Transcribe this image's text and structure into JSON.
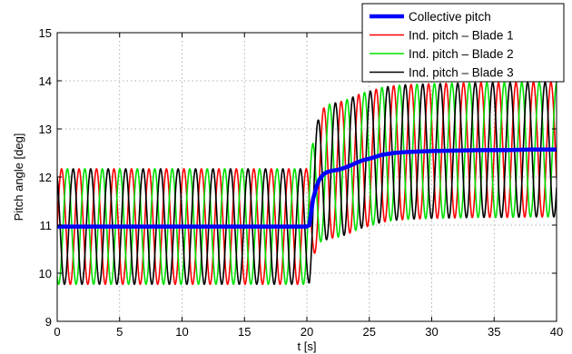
{
  "chart_data": {
    "type": "line",
    "title": "",
    "xlabel": "t [s]",
    "ylabel": "Pitch angle [deg]",
    "xlim": [
      0,
      40
    ],
    "ylim": [
      9,
      15
    ],
    "x_ticks": [
      0,
      5,
      10,
      15,
      20,
      25,
      30,
      35,
      40
    ],
    "y_ticks": [
      9,
      10,
      11,
      12,
      13,
      14,
      15
    ],
    "grid": true,
    "legend_position": "top-right",
    "series": [
      {
        "name": "Collective pitch",
        "color": "#0000ff",
        "x": [
          0,
          5,
          10,
          15,
          20,
          20.2,
          20.5,
          20.8,
          21.0,
          21.3,
          21.6,
          22.0,
          22.5,
          23.0,
          23.5,
          24.0,
          24.5,
          25.0,
          25.5,
          26.0,
          26.5,
          27.0,
          28.0,
          29.0,
          30.0,
          32.0,
          34.0,
          36.0,
          38.0,
          40.0
        ],
        "values": [
          10.97,
          10.97,
          10.97,
          10.97,
          10.97,
          11.0,
          11.55,
          11.82,
          11.95,
          12.05,
          12.1,
          12.13,
          12.15,
          12.19,
          12.24,
          12.3,
          12.35,
          12.38,
          12.42,
          12.46,
          12.48,
          12.5,
          12.52,
          12.53,
          12.54,
          12.55,
          12.56,
          12.56,
          12.57,
          12.57
        ]
      },
      {
        "name": "Ind. pitch – Blade 1",
        "color": "#ff0000",
        "center": "Collective pitch",
        "amplitude_before": 1.2,
        "amplitude_after": 1.4,
        "period_s": 1.4,
        "phase_deg": 0
      },
      {
        "name": "Ind. pitch – Blade 2",
        "color": "#00e000",
        "center": "Collective pitch",
        "amplitude_before": 1.2,
        "amplitude_after": 1.4,
        "period_s": 1.4,
        "phase_deg": 120
      },
      {
        "name": "Ind. pitch – Blade 3",
        "color": "#000000",
        "center": "Collective pitch",
        "amplitude_before": 1.2,
        "amplitude_after": 1.4,
        "period_s": 1.4,
        "phase_deg": 240
      }
    ]
  }
}
